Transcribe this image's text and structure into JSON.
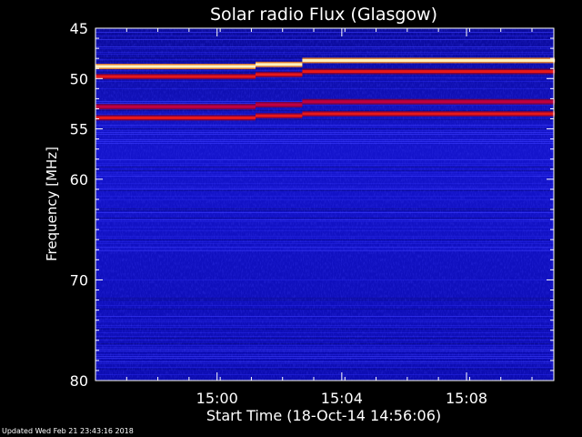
{
  "chart_data": {
    "type": "heatmap",
    "title": "Solar radio Flux (Glasgow)",
    "xlabel": "Start Time (18-Oct-14 14:56:06)",
    "ylabel": "Frequency [MHz]",
    "x_start": "14:56:06",
    "x_end": "15:10:50",
    "xlim_minutes_after_14_56_06": [
      0,
      14.7
    ],
    "ylim": [
      45,
      80
    ],
    "y_inverted": true,
    "x_ticks": [
      {
        "label": "15:00",
        "time": "15:00"
      },
      {
        "label": "15:04",
        "time": "15:04"
      },
      {
        "label": "15:08",
        "time": "15:08"
      }
    ],
    "y_ticks": [
      45,
      50,
      55,
      60,
      70,
      80
    ],
    "colormap": [
      "#00006e",
      "#1a1ae6",
      "#b00030",
      "#ff3020",
      "#ffe080",
      "#ffffff"
    ],
    "bands": [
      {
        "segments": [
          {
            "from": "14:56:06",
            "to": "15:01:14",
            "freq": 48.8
          },
          {
            "from": "15:01:14",
            "to": "15:02:44",
            "freq": 48.6
          },
          {
            "from": "15:02:44",
            "to": "15:10:50",
            "freq": 48.2
          }
        ],
        "level": "very high"
      },
      {
        "segments": [
          {
            "from": "14:56:06",
            "to": "15:01:14",
            "freq": 49.8
          },
          {
            "from": "15:01:14",
            "to": "15:02:44",
            "freq": 49.6
          },
          {
            "from": "15:02:44",
            "to": "15:10:50",
            "freq": 49.3
          }
        ],
        "level": "high"
      },
      {
        "segments": [
          {
            "from": "14:56:06",
            "to": "15:01:14",
            "freq": 52.8
          },
          {
            "from": "15:01:14",
            "to": "15:02:44",
            "freq": 52.6
          },
          {
            "from": "15:02:44",
            "to": "15:10:50",
            "freq": 52.3
          }
        ],
        "level": "medium"
      },
      {
        "segments": [
          {
            "from": "14:56:06",
            "to": "15:01:14",
            "freq": 53.9
          },
          {
            "from": "15:01:14",
            "to": "15:02:44",
            "freq": 53.7
          },
          {
            "from": "15:02:44",
            "to": "15:10:50",
            "freq": 53.5
          }
        ],
        "level": "high"
      }
    ]
  },
  "footer": {
    "updated": "Updated Wed Feb 21 23:43:16 2018"
  }
}
